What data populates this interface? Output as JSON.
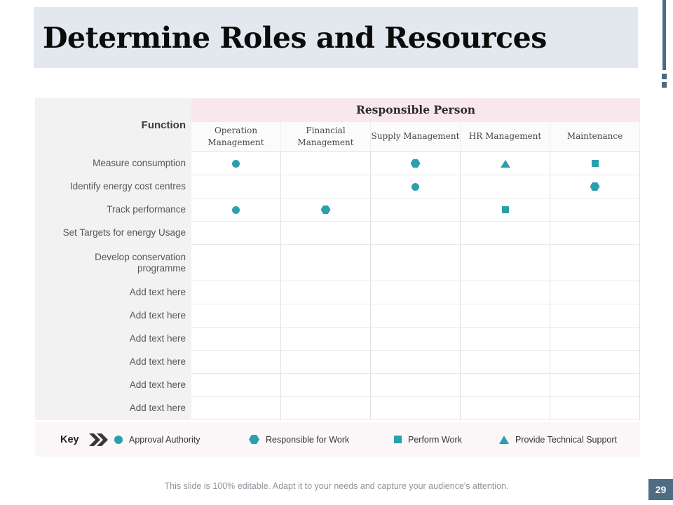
{
  "slide": {
    "title": "Determine Roles and Resources",
    "footer": "This slide is 100% editable. Adapt it to your needs and capture your audience's attention.",
    "page_number": "29"
  },
  "table": {
    "function_header": "Function",
    "group_header": "Responsible Person",
    "columns": [
      "Operation Management",
      "Financial Management",
      "Supply Management",
      "HR Management",
      "Maintenance"
    ],
    "rows": [
      {
        "function": "Measure consumption",
        "cells": [
          "circle",
          "",
          "hexagon",
          "triangle",
          "square"
        ]
      },
      {
        "function": "Identify energy cost centres",
        "cells": [
          "",
          "",
          "circle",
          "",
          "hexagon"
        ]
      },
      {
        "function": "Track performance",
        "cells": [
          "circle",
          "hexagon",
          "",
          "square",
          ""
        ]
      },
      {
        "function": "Set Targets for energy Usage",
        "cells": [
          "",
          "",
          "",
          "",
          ""
        ]
      },
      {
        "function": "Develop conservation programme",
        "cells": [
          "",
          "",
          "",
          "",
          ""
        ]
      },
      {
        "function": "Add text here",
        "cells": [
          "",
          "",
          "",
          "",
          ""
        ]
      },
      {
        "function": "Add text here",
        "cells": [
          "",
          "",
          "",
          "",
          ""
        ]
      },
      {
        "function": "Add text here",
        "cells": [
          "",
          "",
          "",
          "",
          ""
        ]
      },
      {
        "function": "Add text here",
        "cells": [
          "",
          "",
          "",
          "",
          ""
        ]
      },
      {
        "function": "Add text here",
        "cells": [
          "",
          "",
          "",
          "",
          ""
        ]
      },
      {
        "function": "Add text here",
        "cells": [
          "",
          "",
          "",
          "",
          ""
        ]
      }
    ]
  },
  "key": {
    "label": "Key",
    "chevron_icon": "double-chevron-right",
    "items": [
      {
        "symbol": "circle",
        "label": "Approval Authority"
      },
      {
        "symbol": "hexagon",
        "label": "Responsible for Work"
      },
      {
        "symbol": "square",
        "label": "Perform Work"
      },
      {
        "symbol": "triangle",
        "label": "Provide Technical Support"
      }
    ]
  },
  "colors": {
    "symbol_teal": "#2b9fae",
    "accent_slate": "#4d6a7e",
    "title_bg": "#e3e8ef",
    "group_header_bg": "#f8e7ed",
    "function_col_bg": "#f2f2f2",
    "key_band_bg": "#fbf6f7",
    "page_box_bg": "#4e6d85"
  }
}
